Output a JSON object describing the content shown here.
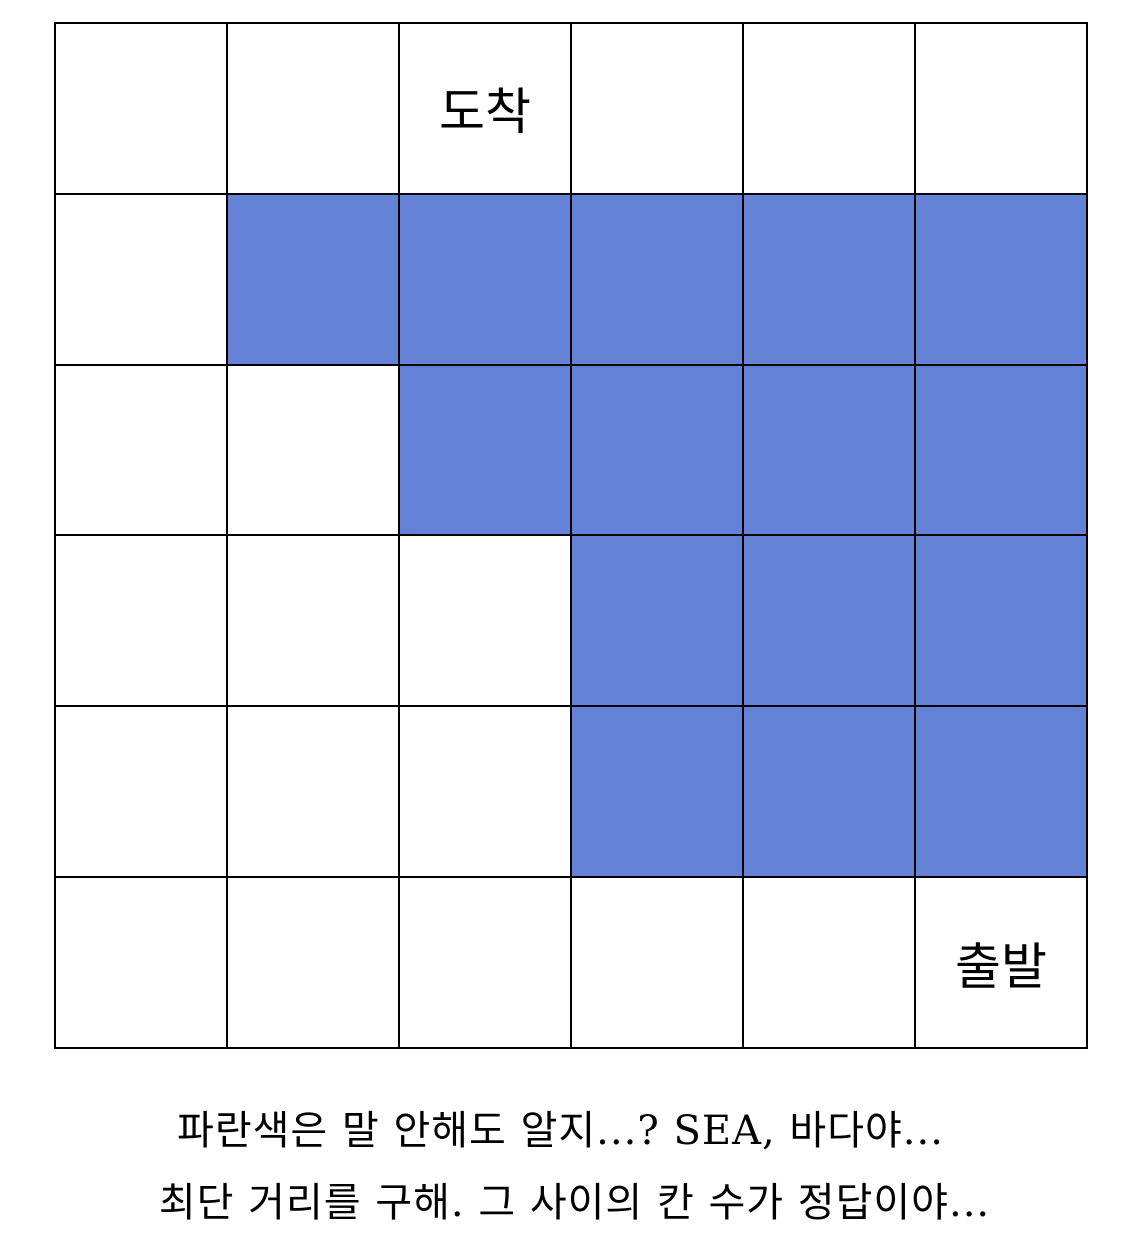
{
  "grid": {
    "rows": 6,
    "cols": 6,
    "blue_color": "#6482d6",
    "blue_cells": [
      [
        0,
        1,
        1,
        1,
        1,
        1
      ],
      [
        0,
        0,
        1,
        1,
        1,
        1
      ],
      [
        0,
        0,
        0,
        1,
        1,
        1
      ],
      [
        0,
        0,
        0,
        1,
        1,
        1
      ]
    ],
    "blue_row_offset": 1,
    "labels": {
      "arrival": "도착",
      "departure": "출발"
    }
  },
  "caption": {
    "line1": "파란색은 말 안해도 알지...? SEA, 바다야...",
    "line2": "최단 거리를 구해. 그 사이의 칸 수가 정답이야..."
  }
}
